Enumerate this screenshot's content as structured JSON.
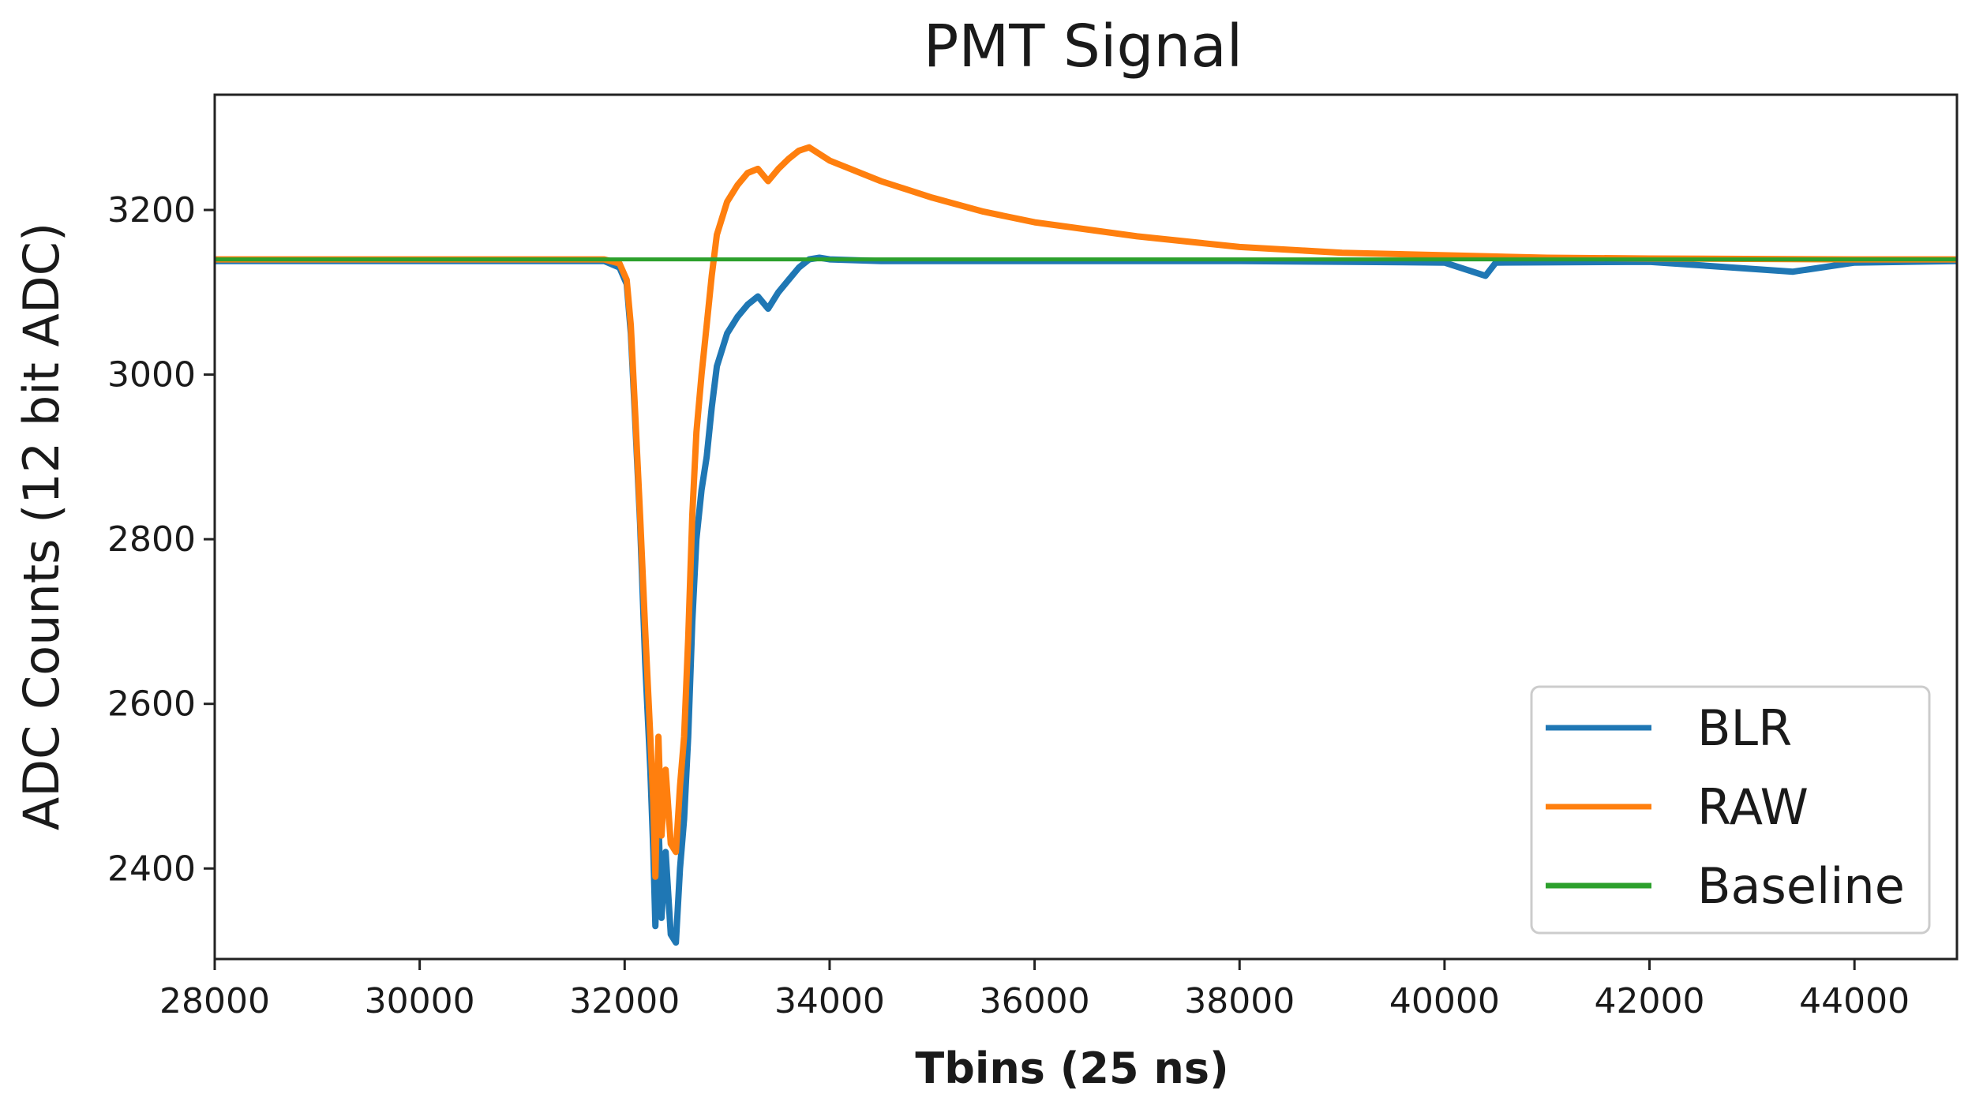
{
  "chart_data": {
    "type": "line",
    "title": "PMT Signal",
    "xlabel": "Tbins (25 ns)",
    "ylabel": "ADC Counts (12 bit ADC)",
    "xlim": [
      28000,
      45000
    ],
    "ylim": [
      2290,
      3340
    ],
    "x_ticks": [
      28000,
      30000,
      32000,
      34000,
      36000,
      38000,
      40000,
      42000,
      44000
    ],
    "y_ticks": [
      2400,
      2600,
      2800,
      3000,
      3200
    ],
    "grid": false,
    "legend_position": "lower-right",
    "series": [
      {
        "name": "BLR",
        "color": "#1f77b4",
        "x": [
          28000,
          31800,
          31950,
          32020,
          32060,
          32100,
          32150,
          32200,
          32250,
          32280,
          32300,
          32330,
          32360,
          32400,
          32450,
          32500,
          32540,
          32580,
          32620,
          32660,
          32700,
          32750,
          32800,
          32850,
          32900,
          33000,
          33100,
          33200,
          33300,
          33400,
          33500,
          33600,
          33700,
          33800,
          33900,
          34000,
          34500,
          36000,
          38000,
          40000,
          40400,
          40500,
          42000,
          43400,
          44000,
          45000
        ],
        "y": [
          3138,
          3138,
          3130,
          3110,
          3050,
          2950,
          2820,
          2650,
          2520,
          2420,
          2330,
          2460,
          2340,
          2420,
          2320,
          2310,
          2400,
          2460,
          2560,
          2700,
          2800,
          2860,
          2900,
          2960,
          3010,
          3050,
          3070,
          3085,
          3095,
          3080,
          3100,
          3115,
          3130,
          3140,
          3142,
          3140,
          3138,
          3138,
          3138,
          3136,
          3120,
          3136,
          3137,
          3125,
          3136,
          3138
        ]
      },
      {
        "name": "RAW",
        "color": "#ff7f0e",
        "x": [
          28000,
          31800,
          31950,
          32020,
          32060,
          32100,
          32150,
          32200,
          32250,
          32280,
          32300,
          32330,
          32360,
          32400,
          32450,
          32500,
          32540,
          32580,
          32620,
          32660,
          32700,
          32750,
          32800,
          32850,
          32900,
          33000,
          33100,
          33200,
          33300,
          33400,
          33500,
          33600,
          33700,
          33800,
          34000,
          34500,
          35000,
          35500,
          36000,
          37000,
          38000,
          39000,
          40000,
          41000,
          42000,
          44000,
          45000
        ],
        "y": [
          3140,
          3140,
          3135,
          3115,
          3060,
          2960,
          2830,
          2690,
          2560,
          2480,
          2390,
          2560,
          2440,
          2520,
          2430,
          2420,
          2500,
          2560,
          2680,
          2830,
          2930,
          3000,
          3060,
          3120,
          3170,
          3210,
          3230,
          3245,
          3250,
          3235,
          3250,
          3262,
          3272,
          3276,
          3260,
          3235,
          3215,
          3198,
          3185,
          3168,
          3155,
          3148,
          3145,
          3142,
          3141,
          3140,
          3140
        ]
      },
      {
        "name": "Baseline",
        "color": "#2ca02c",
        "x": [
          28000,
          45000
        ],
        "y": [
          3140,
          3140
        ]
      }
    ]
  }
}
